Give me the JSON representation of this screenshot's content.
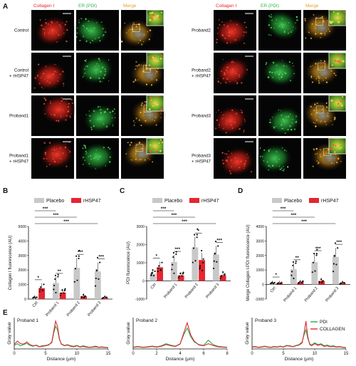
{
  "figure": {
    "panel_letters": [
      "A",
      "B",
      "C",
      "D",
      "E"
    ]
  },
  "panel_a": {
    "left_block": {
      "headers": [
        "Collagen I",
        "ER (PDI)",
        "Merge"
      ],
      "rows": [
        "Control",
        "Control\n+ rHSP47",
        "Proband1",
        "Proband1\n+ rHSP47"
      ]
    },
    "right_block": {
      "headers": [
        "Collagen I",
        "ER (PDI)",
        "Merge"
      ],
      "rows": [
        "Proband2",
        "Proband2\n+ rHSP47",
        "Proband3",
        "Proband3\n+ rHSP47"
      ]
    },
    "header_colors": [
      "#e8252a",
      "#2bb84a",
      "#e8a020"
    ]
  },
  "chart_data": [
    {
      "panel": "B",
      "type": "bar",
      "ylabel": "Collagen I fluorescence (AU)",
      "categories": [
        "Ctrl",
        "Proband 1",
        "Proband 2",
        "Proband 3"
      ],
      "ylim": [
        0,
        5000
      ],
      "yticks": [
        0,
        1000,
        2000,
        3000,
        4000,
        5000
      ],
      "legend": [
        "Placebo",
        "rHSP47"
      ],
      "series": [
        {
          "name": "Placebo",
          "values": [
            100,
            1100,
            2150,
            1900
          ]
        },
        {
          "name": "rHSP47",
          "values": [
            750,
            450,
            200,
            100
          ]
        }
      ],
      "significance": [
        {
          "label": "*",
          "from": 0,
          "to": 1
        },
        {
          "label": "**",
          "from": 2,
          "to": 3
        },
        {
          "label": "***",
          "from": 4,
          "to": 5
        },
        {
          "label": "***",
          "from": 6,
          "to": 7
        },
        {
          "label": "***",
          "from": 0,
          "to": 2
        },
        {
          "label": "***",
          "from": 0,
          "to": 4
        },
        {
          "label": "***",
          "from": 0,
          "to": 6
        }
      ]
    },
    {
      "panel": "C",
      "type": "bar",
      "ylabel": "PDI fluorescence (AU)",
      "categories": [
        "Ctrl",
        "Proband 1",
        "Proband 2",
        "Proband 3"
      ],
      "ylim": [
        -1000,
        3000
      ],
      "yticks": [
        -1000,
        0,
        1000,
        2000,
        3000
      ],
      "legend": [
        "Placebo",
        "rHSP47"
      ],
      "series": [
        {
          "name": "Placebo",
          "values": [
            400,
            1050,
            1850,
            1450
          ]
        },
        {
          "name": "rHSP47",
          "values": [
            750,
            300,
            1150,
            300
          ]
        }
      ],
      "significance": [
        {
          "label": "*",
          "from": 0,
          "to": 1
        },
        {
          "label": "***",
          "from": 2,
          "to": 3
        },
        {
          "label": "*",
          "from": 4,
          "to": 5
        },
        {
          "label": "***",
          "from": 6,
          "to": 7
        },
        {
          "label": "***",
          "from": 0,
          "to": 2
        },
        {
          "label": "***",
          "from": 0,
          "to": 4
        },
        {
          "label": "***",
          "from": 0,
          "to": 6
        }
      ]
    },
    {
      "panel": "D",
      "type": "bar",
      "ylabel": "Merge Collagen I-PDI fluorescence (AU)",
      "categories": [
        "Ctrl",
        "Proband 1",
        "Proband 2",
        "Proband 3"
      ],
      "ylim": [
        -1000,
        4000
      ],
      "yticks": [
        -1000,
        0,
        1000,
        2000,
        3000,
        4000
      ],
      "legend": [
        "Placebo",
        "rHSP47"
      ],
      "series": [
        {
          "name": "Placebo",
          "values": [
            100,
            1050,
            1550,
            1900
          ]
        },
        {
          "name": "rHSP47",
          "values": [
            100,
            150,
            250,
            100
          ]
        }
      ],
      "significance": [
        {
          "label": "*",
          "from": 0,
          "to": 1
        },
        {
          "label": "**",
          "from": 2,
          "to": 3
        },
        {
          "label": "***",
          "from": 4,
          "to": 5
        },
        {
          "label": "***",
          "from": 6,
          "to": 7
        },
        {
          "label": "***",
          "from": 0,
          "to": 2
        },
        {
          "label": "***",
          "from": 0,
          "to": 4
        },
        {
          "label": "***",
          "from": 0,
          "to": 6
        }
      ]
    },
    {
      "panel": "E1",
      "type": "line",
      "title": "Proband 1",
      "xlabel": "Distance (μm)",
      "ylabel": "Gray value",
      "xlim": [
        0,
        15
      ],
      "xticks": [
        0,
        5,
        10,
        15
      ],
      "series": [
        {
          "name": "PDI",
          "x": [
            0,
            0.5,
            1,
            1.5,
            2,
            2.5,
            3,
            3.5,
            4,
            4.5,
            5,
            5.5,
            6,
            6.3,
            6.6,
            6.9,
            7.2,
            7.5,
            8,
            8.5,
            9,
            9.5,
            10,
            10.5,
            11,
            11.5,
            12,
            12.5,
            13,
            13.5,
            14,
            14.5,
            15
          ],
          "y": [
            20,
            30,
            18,
            25,
            32,
            20,
            15,
            22,
            14,
            18,
            20,
            25,
            35,
            90,
            130,
            110,
            55,
            30,
            20,
            25,
            18,
            15,
            20,
            12,
            18,
            14,
            10,
            12,
            16,
            10,
            12,
            10,
            8
          ]
        },
        {
          "name": "COLLAGEN",
          "x": [
            0,
            0.5,
            1,
            1.5,
            2,
            2.5,
            3,
            3.5,
            4,
            4.5,
            5,
            5.5,
            6,
            6.3,
            6.6,
            6.9,
            7.2,
            7.5,
            8,
            8.5,
            9,
            9.5,
            10,
            10.5,
            11,
            11.5,
            12,
            12.5,
            13,
            13.5,
            14,
            14.5,
            15
          ],
          "y": [
            25,
            45,
            30,
            28,
            40,
            25,
            18,
            20,
            12,
            15,
            18,
            22,
            40,
            100,
            160,
            130,
            60,
            28,
            18,
            22,
            15,
            12,
            18,
            10,
            14,
            10,
            8,
            10,
            12,
            8,
            10,
            8,
            6
          ]
        }
      ]
    },
    {
      "panel": "E2",
      "type": "line",
      "title": "Proband 2",
      "xlabel": "Distance (μm)",
      "ylabel": "Gray value",
      "xlim": [
        0,
        8
      ],
      "xticks": [
        0,
        2,
        4,
        6,
        8
      ],
      "series": [
        {
          "name": "PDI",
          "x": [
            0,
            0.4,
            0.8,
            1.2,
            1.6,
            2,
            2.4,
            2.8,
            3.2,
            3.6,
            4,
            4.3,
            4.6,
            4.9,
            5.2,
            5.6,
            6,
            6.4,
            6.8,
            7.2,
            7.6,
            8
          ],
          "y": [
            10,
            14,
            10,
            12,
            16,
            12,
            18,
            30,
            22,
            16,
            30,
            80,
            120,
            70,
            40,
            25,
            20,
            50,
            25,
            15,
            12,
            10
          ]
        },
        {
          "name": "COLLAGEN",
          "x": [
            0,
            0.4,
            0.8,
            1.2,
            1.6,
            2,
            2.4,
            2.8,
            3.2,
            3.6,
            4,
            4.3,
            4.6,
            4.9,
            5.2,
            5.6,
            6,
            6.4,
            6.8,
            7.2,
            7.6,
            8
          ],
          "y": [
            8,
            12,
            8,
            10,
            14,
            10,
            15,
            25,
            18,
            14,
            28,
            90,
            150,
            80,
            45,
            22,
            18,
            30,
            20,
            12,
            10,
            8
          ]
        }
      ]
    },
    {
      "panel": "E3",
      "type": "line",
      "title": "Proband 3",
      "xlabel": "Distance (μm)",
      "ylabel": "Gray value",
      "xlim": [
        0,
        15
      ],
      "xticks": [
        0,
        5,
        10,
        15
      ],
      "legend": [
        "PDI",
        "COLLAGEN"
      ],
      "series": [
        {
          "name": "PDI",
          "x": [
            0,
            0.5,
            1,
            1.5,
            2,
            2.5,
            3,
            3.5,
            4,
            4.5,
            5,
            5.5,
            6,
            6.5,
            7,
            7.5,
            8,
            8.3,
            8.6,
            8.9,
            9.2,
            9.5,
            10,
            10.5,
            11,
            11.5,
            12,
            12.5,
            13,
            13.5,
            14,
            14.5,
            15
          ],
          "y": [
            12,
            14,
            10,
            12,
            16,
            12,
            10,
            14,
            12,
            16,
            12,
            20,
            18,
            14,
            20,
            25,
            40,
            80,
            110,
            60,
            30,
            22,
            35,
            25,
            30,
            18,
            22,
            15,
            18,
            12,
            14,
            10,
            8
          ]
        },
        {
          "name": "COLLAGEN",
          "x": [
            0,
            0.5,
            1,
            1.5,
            2,
            2.5,
            3,
            3.5,
            4,
            4.5,
            5,
            5.5,
            6,
            6.5,
            7,
            7.5,
            8,
            8.3,
            8.6,
            8.9,
            9.2,
            9.5,
            10,
            10.5,
            11,
            11.5,
            12,
            12.5,
            13,
            13.5,
            14,
            14.5,
            15
          ],
          "y": [
            10,
            12,
            8,
            10,
            14,
            10,
            8,
            12,
            10,
            14,
            10,
            18,
            16,
            12,
            18,
            22,
            35,
            90,
            160,
            70,
            25,
            18,
            30,
            20,
            25,
            14,
            18,
            12,
            14,
            10,
            12,
            8,
            6
          ]
        }
      ]
    }
  ],
  "colors": {
    "placebo": "#c8c8c8",
    "rhsp47": "#e4262f",
    "pdi_line": "#2aa84a",
    "collagen_line": "#e4262f"
  }
}
